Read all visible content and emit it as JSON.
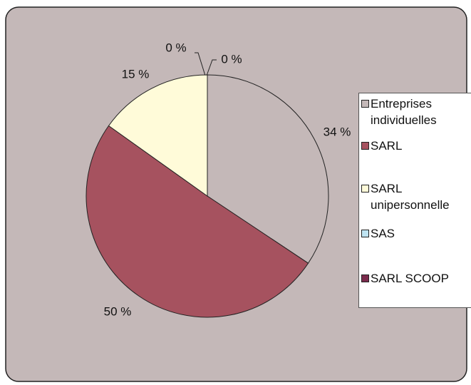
{
  "chart_data": {
    "type": "pie",
    "categories": [
      "Entreprises individuelles",
      "SARL",
      "SARL unipersonnelle",
      "SAS",
      "SARL SCOOP"
    ],
    "values": [
      34,
      50,
      15,
      0,
      0
    ],
    "value_labels": [
      "34 %",
      "50 %",
      "15 %",
      "0 %",
      "0 %"
    ],
    "colors": [
      "#c4b8b8",
      "#a6525f",
      "#fffbd9",
      "#bfe4f2",
      "#7b2b4d"
    ],
    "legend": "right"
  }
}
